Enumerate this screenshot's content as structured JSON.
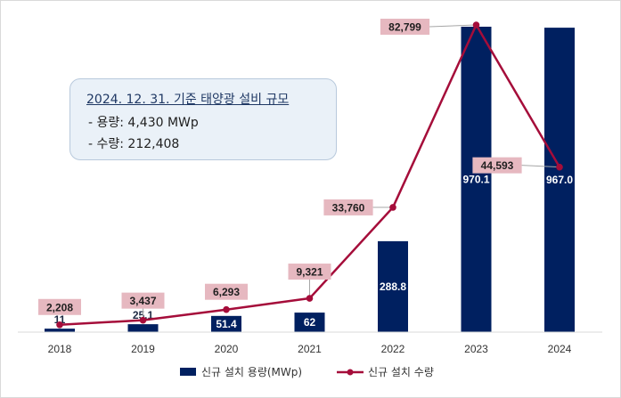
{
  "chart_data": {
    "type": "bar",
    "categories": [
      "2018",
      "2019",
      "2020",
      "2021",
      "2022",
      "2023",
      "2024"
    ],
    "series": [
      {
        "name": "신규 설치 용량(MWp)",
        "type": "bar",
        "values": [
          11,
          25.1,
          51.4,
          62,
          288.8,
          970.1,
          967.0
        ],
        "labels": [
          "11",
          "25.1",
          "51.4",
          "62",
          "288.8",
          "970.1",
          "967.0"
        ],
        "color": "#002060"
      },
      {
        "name": "신규 설치 수량",
        "type": "line",
        "values": [
          2208,
          3437,
          6293,
          9321,
          33760,
          82799,
          44593
        ],
        "labels": [
          "2,208",
          "3,437",
          "6,293",
          "9,321",
          "33,760",
          "82,799",
          "44,593"
        ],
        "color": "#a50d3a",
        "label_bg": "#e6b8c0"
      }
    ],
    "bar_axis_range": [
      0,
      970.1
    ],
    "line_axis_range": [
      0,
      82799
    ],
    "legend_position": "bottom",
    "grid": false,
    "annotation": {
      "title": "2024. 12. 31. 기준 태양광 설비 규모",
      "lines": [
        " - 용량: 4,430 MWp",
        " - 수량: 212,408"
      ]
    }
  }
}
